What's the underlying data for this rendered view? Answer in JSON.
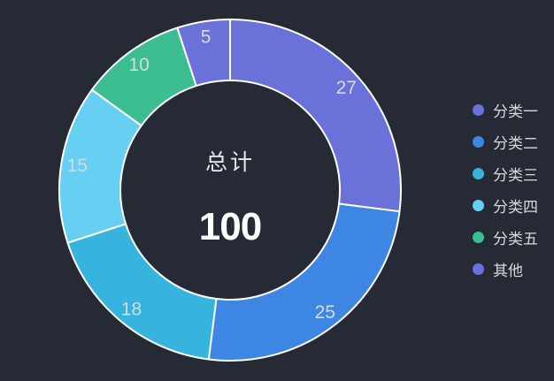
{
  "background": "#262a35",
  "chart_data": {
    "type": "pie",
    "subtype": "donut",
    "legend_position": "right",
    "total": {
      "label": "总计",
      "value": "100"
    },
    "categories": [
      "分类一",
      "分类二",
      "分类三",
      "分类四",
      "分类五",
      "其他"
    ],
    "values": [
      27,
      25,
      18,
      15,
      10,
      5
    ],
    "series": [
      {
        "name": "分类一",
        "value": 27,
        "color": "#6a71d9"
      },
      {
        "name": "分类二",
        "value": 25,
        "color": "#3e86e3"
      },
      {
        "name": "分类三",
        "value": 18,
        "color": "#36b4dd"
      },
      {
        "name": "分类四",
        "value": 15,
        "color": "#66cff2"
      },
      {
        "name": "分类五",
        "value": 10,
        "color": "#3cbd92"
      },
      {
        "name": "其他",
        "value": 5,
        "color": "#6a71d9"
      }
    ],
    "start_angle_deg": 0,
    "center": [
      260,
      215
    ],
    "inner_radius": 124,
    "outer_radius": 193,
    "label_radius": 175,
    "label_color": "#d7dade",
    "stroke_color": "#ffffff",
    "stroke_width": 2
  }
}
